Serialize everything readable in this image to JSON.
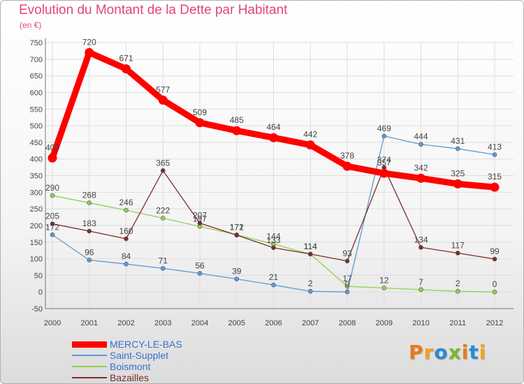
{
  "header": {
    "title": "Evolution du Montant de la Dette par Habitant",
    "subtitle": "(en €)"
  },
  "chart_data": {
    "type": "line",
    "title": "Evolution du Montant de la Dette par Habitant",
    "subtitle": "(en €)",
    "xlabel": "",
    "ylabel": "",
    "categories": [
      "2000",
      "2001",
      "2002",
      "2003",
      "2004",
      "2005",
      "2006",
      "2007",
      "2008",
      "2009",
      "2010",
      "2011",
      "2012"
    ],
    "yticks": [
      "-50",
      "0",
      "50",
      "100",
      "150",
      "200",
      "250",
      "300",
      "350",
      "400",
      "450",
      "500",
      "550",
      "600",
      "650",
      "700",
      "750"
    ],
    "ylim": [
      -50,
      750
    ],
    "grid": true,
    "legend_position": "bottom-left",
    "series": [
      {
        "name": "MERCY-LE-BAS",
        "color": "#ff0000",
        "values": [
          403,
          720,
          671,
          577,
          509,
          485,
          464,
          442,
          378,
          357,
          342,
          325,
          315
        ]
      },
      {
        "name": "Saint-Supplet",
        "color": "#5b9bd5",
        "values": [
          172,
          96,
          84,
          71,
          56,
          39,
          21,
          2,
          0,
          469,
          444,
          431,
          413
        ]
      },
      {
        "name": "Boismont",
        "color": "#92d050",
        "values": [
          290,
          268,
          246,
          222,
          197,
          172,
          144,
          114,
          17,
          12,
          7,
          2,
          0
        ]
      },
      {
        "name": "Bazailles",
        "color": "#7b2c2c",
        "values": [
          205,
          183,
          160,
          365,
          207,
          171,
          133,
          114,
          93,
          374,
          134,
          117,
          99
        ]
      }
    ],
    "data_labels": [
      [
        "403",
        "720",
        "671",
        "577",
        "509",
        "485",
        "464",
        "442",
        "378",
        "357",
        "342",
        "325",
        "315"
      ],
      [
        "172",
        "96",
        "84",
        "71",
        "56",
        "39",
        "21",
        "2",
        "0",
        "469",
        "444",
        "431",
        "413"
      ],
      [
        "290",
        "268",
        "246",
        "222",
        "197",
        "172",
        "144",
        "114",
        "17",
        "12",
        "7",
        "2",
        "0"
      ],
      [
        "205",
        "183",
        "160",
        "365",
        "207",
        "171",
        "133",
        "114",
        "93",
        "374",
        "134",
        "117",
        "99"
      ]
    ]
  },
  "branding": {
    "logo_text": "Proxiti",
    "logo_colors": [
      "#e87a1e",
      "#f3a21b",
      "#2a8ad0",
      "#7db631",
      "#e87a1e",
      "#2a8ad0",
      "#f3a21b"
    ]
  }
}
